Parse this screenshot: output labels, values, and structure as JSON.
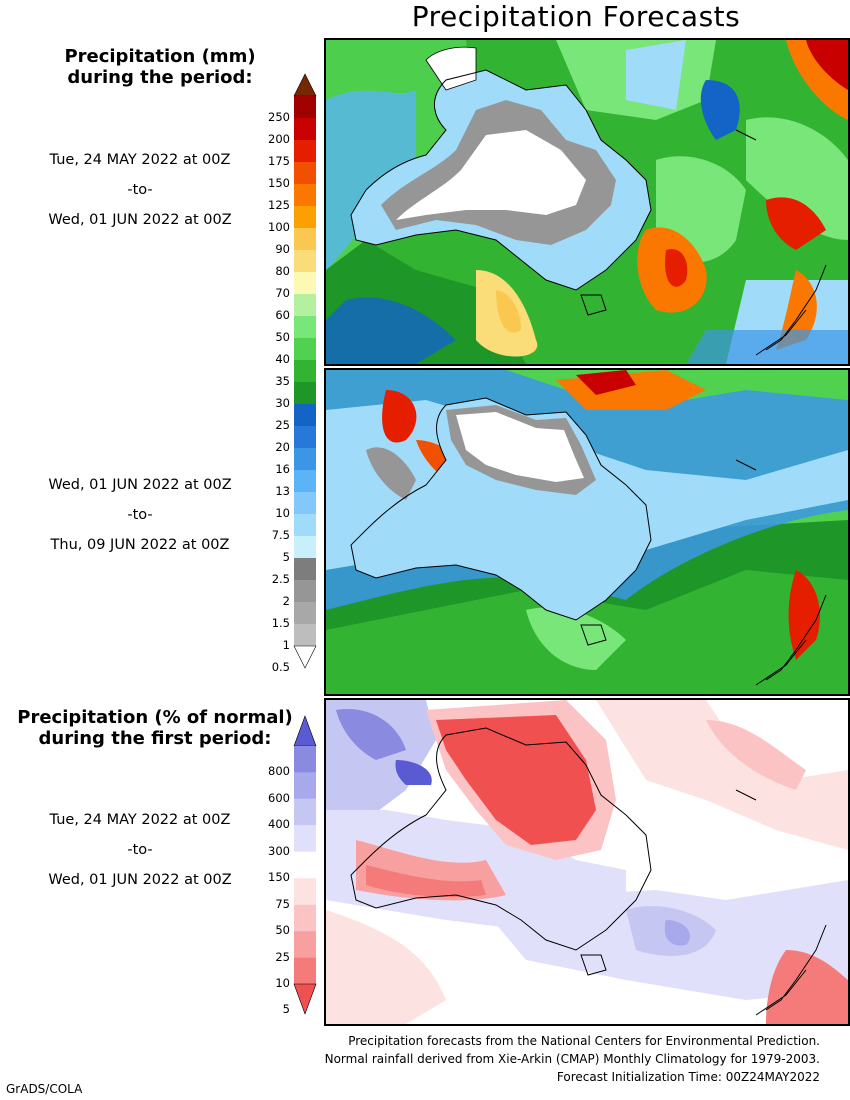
{
  "title": "Precipitation Forecasts",
  "legend_mm": {
    "heading_line1": "Precipitation (mm)",
    "heading_line2": "during the period:",
    "levels": [
      "0.5",
      "1",
      "1.5",
      "2",
      "2.5",
      "5",
      "7.5",
      "10",
      "13",
      "16",
      "20",
      "25",
      "30",
      "35",
      "40",
      "50",
      "60",
      "70",
      "80",
      "90",
      "100",
      "125",
      "150",
      "175",
      "200",
      "250"
    ],
    "colors": [
      "#bdbdbd",
      "#a8a8a8",
      "#969696",
      "#7d7d7d",
      "#c8f0fa",
      "#a0dcfa",
      "#82c8fa",
      "#5ab4f5",
      "#3c96e6",
      "#2878dc",
      "#1464c8",
      "#1e9628",
      "#32b432",
      "#50d250",
      "#78e678",
      "#b4f0a0",
      "#fafab4",
      "#fadc78",
      "#fac850",
      "#faa000",
      "#fa7800",
      "#f05000",
      "#e61e00",
      "#c80000",
      "#a00000",
      "#782800"
    ]
  },
  "legend_pct": {
    "heading_line1": "Precipitation (% of normal)",
    "heading_line2": "during the first period:",
    "levels": [
      "5",
      "10",
      "25",
      "50",
      "75",
      "150",
      "300",
      "400",
      "600",
      "800"
    ],
    "colors": [
      "#f05050",
      "#f57a7a",
      "#f8a0a0",
      "#fbc3c3",
      "#fde2e2",
      "#ffffff",
      "#e0e0fa",
      "#c6c6f2",
      "#a8a8ec",
      "#8a8ae0",
      "#5a5ad2"
    ]
  },
  "periods": [
    {
      "from": "Tue, 24 MAY 2022 at 00Z",
      "sep": "-to-",
      "to": "Wed, 01 JUN 2022 at 00Z"
    },
    {
      "from": "Wed, 01 JUN 2022 at 00Z",
      "sep": "-to-",
      "to": "Thu, 09 JUN 2022 at 00Z"
    },
    {
      "from": "Tue, 24 MAY 2022 at 00Z",
      "sep": "-to-",
      "to": "Wed, 01 JUN 2022 at 00Z"
    }
  ],
  "footer": {
    "line1": "Precipitation forecasts from the National Centers for Environmental Prediction.",
    "line2": "Normal rainfall derived from Xie-Arkin (CMAP) Monthly Climatology for 1979-2003.",
    "line3": "Forecast Initialization Time: 00Z24MAY2022"
  },
  "credit": "GrADS/COLA"
}
